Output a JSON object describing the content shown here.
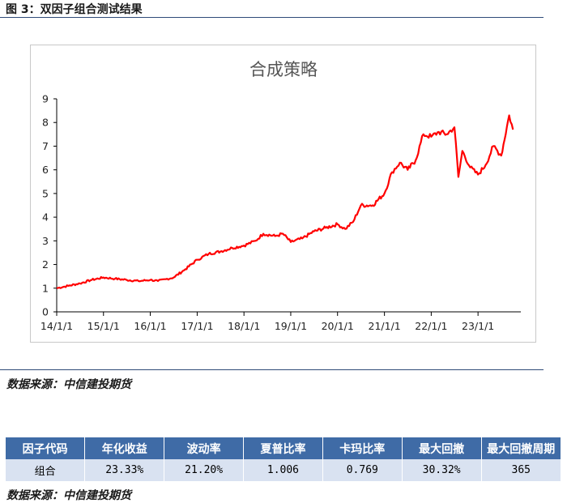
{
  "figure": {
    "title": "图 3：双因子组合测试结果"
  },
  "chart_data": {
    "type": "line",
    "title": "合成策略",
    "xlabel": "",
    "ylabel": "",
    "ylim": [
      0,
      9
    ],
    "yticks": [
      0,
      1,
      2,
      3,
      4,
      5,
      6,
      7,
      8,
      9
    ],
    "xticks": [
      "14/1/1",
      "15/1/1",
      "16/1/1",
      "17/1/1",
      "18/1/1",
      "19/1/1",
      "20/1/1",
      "21/1/1",
      "22/1/1",
      "23/1/1"
    ],
    "grid": false,
    "legend": "none",
    "series": [
      {
        "color": "#ff0000",
        "x": [
          "14/1/1",
          "14/4/1",
          "14/7/1",
          "14/10/1",
          "15/1/1",
          "15/4/1",
          "15/7/1",
          "15/10/1",
          "16/1/1",
          "16/3/1",
          "16/5/1",
          "16/7/1",
          "16/10/1",
          "17/1/1",
          "17/4/1",
          "17/7/1",
          "17/10/1",
          "18/1/1",
          "18/4/1",
          "18/6/1",
          "18/9/1",
          "18/11/1",
          "19/1/1",
          "19/4/1",
          "19/7/1",
          "19/10/1",
          "20/1/1",
          "20/3/1",
          "20/5/1",
          "20/7/1",
          "20/10/1",
          "21/1/1",
          "21/3/1",
          "21/5/1",
          "21/7/1",
          "21/9/1",
          "21/11/1",
          "22/1/1",
          "22/3/1",
          "22/5/1",
          "22/7/1",
          "22/8/1",
          "22/9/1",
          "22/11/1",
          "23/1/1",
          "23/3/1",
          "23/5/1",
          "23/7/1",
          "23/9/1",
          "23/10/1"
        ],
        "values": [
          1.0,
          1.1,
          1.2,
          1.35,
          1.45,
          1.4,
          1.35,
          1.3,
          1.35,
          1.3,
          1.38,
          1.45,
          1.8,
          2.2,
          2.45,
          2.55,
          2.7,
          2.8,
          3.0,
          3.3,
          3.2,
          3.3,
          2.95,
          3.1,
          3.4,
          3.55,
          3.7,
          3.5,
          3.8,
          4.5,
          4.5,
          5.0,
          5.9,
          6.3,
          6.0,
          6.4,
          7.5,
          7.4,
          7.6,
          7.5,
          7.8,
          5.7,
          6.8,
          6.1,
          5.8,
          6.2,
          7.0,
          6.6,
          8.3,
          7.7
        ]
      }
    ]
  },
  "source_note": "数据来源：中信建投期货",
  "metrics_table": {
    "headers": [
      "因子代码",
      "年化收益",
      "波动率",
      "夏普比率",
      "卡玛比率",
      "最大回撤",
      "最大回撤周期"
    ],
    "rows": [
      [
        "组合",
        "23.33%",
        "21.20%",
        "1.006",
        "0.769",
        "30.32%",
        "365"
      ]
    ]
  }
}
